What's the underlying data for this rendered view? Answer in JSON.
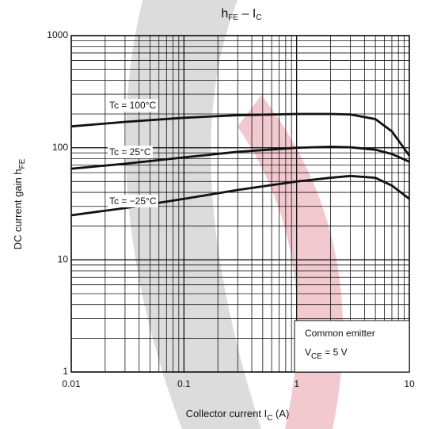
{
  "chart_data": {
    "type": "line",
    "title": [
      "h",
      "FE",
      " – I",
      "C"
    ],
    "x_label": [
      "Collector current  I",
      "C",
      "  (A)"
    ],
    "y_label": [
      "DC current gain  h",
      "FE"
    ],
    "annotation": {
      "line1": "Common emitter",
      "line2": [
        "V",
        "CE",
        " = 5 V"
      ]
    },
    "log_x": true,
    "log_y": true,
    "grid": true,
    "xlim": [
      0.01,
      10
    ],
    "ylim": [
      1,
      1000
    ],
    "xticks": [
      0.01,
      0.1,
      1,
      10
    ],
    "yticks": [
      1,
      10,
      100,
      1000
    ],
    "xminorticks": [
      0.02,
      0.03,
      0.04,
      0.05,
      0.06,
      0.07,
      0.08,
      0.09,
      0.2,
      0.3,
      0.4,
      0.5,
      0.6,
      0.7,
      0.8,
      0.9,
      2,
      3,
      4,
      5,
      6,
      7,
      8,
      9
    ],
    "yminorticks": [
      2,
      3,
      4,
      5,
      6,
      7,
      8,
      9,
      20,
      30,
      40,
      50,
      60,
      70,
      80,
      90,
      200,
      300,
      400,
      500,
      600,
      700,
      800,
      900
    ],
    "x": [
      0.01,
      0.03,
      0.1,
      0.3,
      1,
      2,
      3,
      5,
      7,
      10
    ],
    "series": [
      {
        "name": "Tc = 100°C",
        "color": "#111111",
        "values": [
          155,
          170,
          185,
          195,
          200,
          200,
          198,
          180,
          140,
          85
        ]
      },
      {
        "name": "Tc = 25°C",
        "color": "#111111",
        "values": [
          65,
          72,
          82,
          92,
          100,
          102,
          101,
          96,
          88,
          75
        ]
      },
      {
        "name": "Tc = −25°C",
        "color": "#111111",
        "values": [
          25,
          29,
          35,
          42,
          50,
          54,
          56,
          54,
          46,
          35
        ]
      }
    ]
  }
}
